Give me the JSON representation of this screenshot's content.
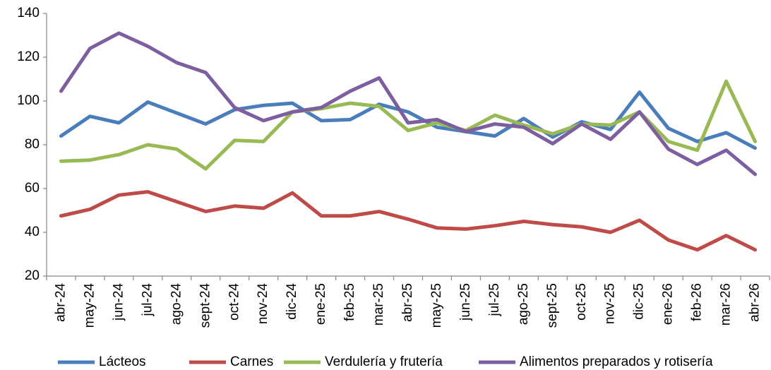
{
  "chart_data": {
    "type": "line",
    "categories": [
      "abr-24",
      "may-24",
      "jun-24",
      "jul-24",
      "ago-24",
      "sept-24",
      "oct-24",
      "nov-24",
      "dic-24",
      "ene-25",
      "feb-25",
      "mar-25",
      "abr-25",
      "may-25",
      "jun-25",
      "jul-25",
      "ago-25",
      "sept-25",
      "oct-25",
      "nov-25",
      "dic-25",
      "ene-26",
      "feb-26",
      "mar-26",
      "abr-26"
    ],
    "series": [
      {
        "name": "Lácteos",
        "color": "#4a7ebb",
        "values": [
          84,
          93,
          90,
          99.5,
          94.5,
          89.5,
          96,
          98,
          99,
          91,
          91.5,
          98.5,
          95,
          88,
          86,
          84,
          92,
          83.5,
          90.5,
          87,
          104,
          87.5,
          81.5,
          85.5,
          78.5
        ]
      },
      {
        "name": "Carnes",
        "color": "#be4b48",
        "values": [
          47.5,
          50.5,
          57,
          58.5,
          54,
          49.5,
          52,
          51,
          58,
          47.5,
          47.5,
          49.5,
          46,
          42,
          41.5,
          43,
          45,
          43.5,
          42.5,
          40,
          45.5,
          36.5,
          32,
          38.5,
          32
        ]
      },
      {
        "name": "Verdulería y frutería",
        "color": "#98b954",
        "values": [
          72.5,
          73,
          75.5,
          80,
          78,
          69,
          82,
          81.5,
          95,
          96.5,
          99,
          97.5,
          86.5,
          90,
          86.5,
          93.5,
          89,
          85,
          89.5,
          89,
          95,
          81.5,
          77.5,
          109,
          81.5
        ]
      },
      {
        "name": "Alimentos preparados y rotisería",
        "color": "#7d5fa0",
        "values": [
          104.5,
          124,
          131,
          125,
          117.5,
          113,
          97,
          91,
          95,
          97,
          104.5,
          110.5,
          90,
          91.5,
          86,
          89.5,
          88,
          80.5,
          89.5,
          82.5,
          95,
          78,
          71,
          77.5,
          66.5
        ]
      }
    ],
    "ylim": [
      20,
      140
    ],
    "yticks": [
      20,
      40,
      60,
      80,
      100,
      120,
      140
    ],
    "grid": false,
    "legend": "bottom"
  }
}
